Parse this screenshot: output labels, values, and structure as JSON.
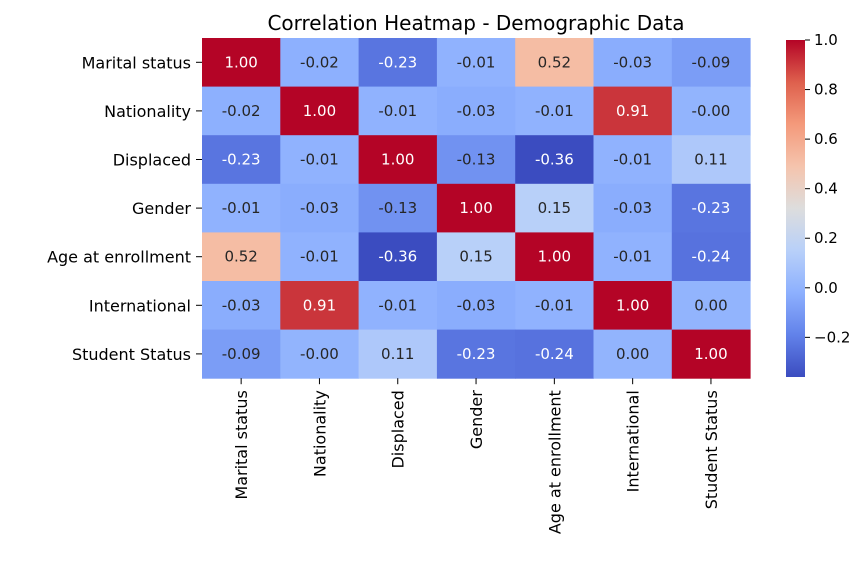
{
  "chart_data": {
    "type": "heatmap",
    "title": "Correlation Heatmap - Demographic Data",
    "xlabel": "",
    "ylabel": "",
    "x_categories": [
      "Marital status",
      "Nationality",
      "Displaced",
      "Gender",
      "Age at enrollment",
      "International",
      "Student Status"
    ],
    "y_categories": [
      "Marital status",
      "Nationality",
      "Displaced",
      "Gender",
      "Age at enrollment",
      "International",
      "Student Status"
    ],
    "values": [
      [
        1.0,
        -0.02,
        -0.23,
        -0.01,
        0.52,
        -0.03,
        -0.09
      ],
      [
        -0.02,
        1.0,
        -0.01,
        -0.03,
        -0.01,
        0.91,
        -0.0
      ],
      [
        -0.23,
        -0.01,
        1.0,
        -0.13,
        -0.36,
        -0.01,
        0.11
      ],
      [
        -0.01,
        -0.03,
        -0.13,
        1.0,
        0.15,
        -0.03,
        -0.23
      ],
      [
        0.52,
        -0.01,
        -0.36,
        0.15,
        1.0,
        -0.01,
        -0.24
      ],
      [
        -0.03,
        0.91,
        -0.01,
        -0.03,
        -0.01,
        1.0,
        0.0
      ],
      [
        -0.09,
        -0.0,
        0.11,
        -0.23,
        -0.24,
        0.0,
        1.0
      ]
    ],
    "value_labels": [
      [
        "1.00",
        "-0.02",
        "-0.23",
        "-0.01",
        "0.52",
        "-0.03",
        "-0.09"
      ],
      [
        "-0.02",
        "1.00",
        "-0.01",
        "-0.03",
        "-0.01",
        "0.91",
        "-0.00"
      ],
      [
        "-0.23",
        "-0.01",
        "1.00",
        "-0.13",
        "-0.36",
        "-0.01",
        "0.11"
      ],
      [
        "-0.01",
        "-0.03",
        "-0.13",
        "1.00",
        "0.15",
        "-0.03",
        "-0.23"
      ],
      [
        "0.52",
        "-0.01",
        "-0.36",
        "0.15",
        "1.00",
        "-0.01",
        "-0.24"
      ],
      [
        "-0.03",
        "0.91",
        "-0.01",
        "-0.03",
        "-0.01",
        "1.00",
        "0.00"
      ],
      [
        "-0.09",
        "-0.00",
        "0.11",
        "-0.23",
        "-0.24",
        "0.00",
        "1.00"
      ]
    ],
    "colormap": "coolwarm",
    "colorbar": {
      "range": [
        -0.36,
        1.0
      ],
      "ticks": [
        1.0,
        0.8,
        0.6,
        0.4,
        0.2,
        0.0,
        -0.2
      ],
      "tick_labels": [
        "1.0",
        "0.8",
        "0.6",
        "0.4",
        "0.2",
        "0.0",
        "−0.2"
      ]
    },
    "grid": false,
    "annotated": true
  }
}
